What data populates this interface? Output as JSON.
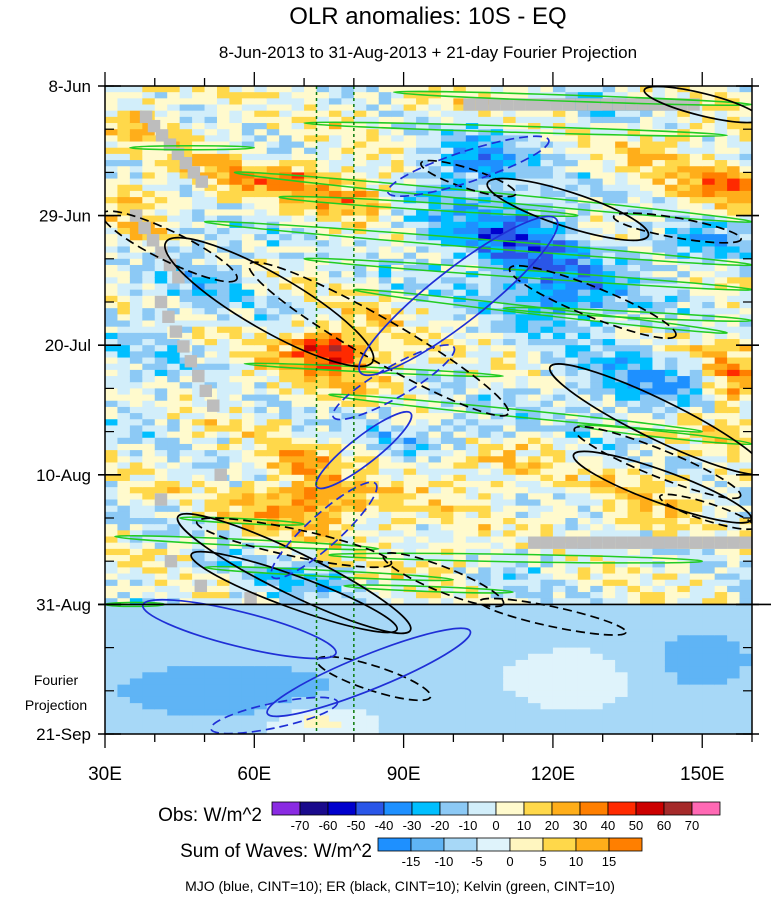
{
  "chart_data": {
    "type": "heatmap",
    "title": "OLR anomalies: 10S - EQ",
    "subtitle": "8-Jun-2013 to 31-Aug-2013 + 21-day Fourier Projection",
    "x_axis": {
      "range": [
        30,
        160
      ],
      "ticks": [
        {
          "value": 30,
          "label": "30E"
        },
        {
          "value": 60,
          "label": "60E"
        },
        {
          "value": 90,
          "label": "90E"
        },
        {
          "value": 120,
          "label": "120E"
        },
        {
          "value": 150,
          "label": "150E"
        }
      ]
    },
    "y_axis": {
      "range_days": [
        0,
        105
      ],
      "ticks": [
        {
          "day": 0,
          "label": "8-Jun"
        },
        {
          "day": 21,
          "label": "29-Jun"
        },
        {
          "day": 42,
          "label": "20-Jul"
        },
        {
          "day": 63,
          "label": "10-Aug"
        },
        {
          "day": 84,
          "label": "31-Aug"
        },
        {
          "day": 105,
          "label": "21-Sep"
        }
      ],
      "observation_end_day": 84,
      "projection_label_line1": "Fourier",
      "projection_label_line2": "Projection"
    },
    "reference_longitudes": [
      72.5,
      80
    ],
    "obs_colorbar": {
      "label": "Obs: W/m^2",
      "levels": [
        "-70",
        "-60",
        "-50",
        "-40",
        "-30",
        "-20",
        "-10",
        "0",
        "10",
        "20",
        "30",
        "40",
        "50",
        "60",
        "70"
      ],
      "colors": [
        "#8a2be2",
        "#1a0a8c",
        "#0000cd",
        "#2a56e8",
        "#1e90ff",
        "#00bfff",
        "#8cc9f5",
        "#d2eefa",
        "#fffacd",
        "#ffd84a",
        "#ffae1a",
        "#ff7f00",
        "#ff2a00",
        "#cc0000",
        "#a52a2a",
        "#ff69b4"
      ]
    },
    "waves_colorbar": {
      "label": "Sum of Waves: W/m^2",
      "levels": [
        "-15",
        "-10",
        "-5",
        "0",
        "5",
        "10",
        "15"
      ],
      "colors": [
        "#1e90ff",
        "#5fb4f5",
        "#a7d8f7",
        "#dff3fb",
        "#fff6c0",
        "#ffd84a",
        "#ffae1a",
        "#ff7f00"
      ]
    },
    "contour_note": "MJO (blue, CINT=10); ER (black, CINT=10); Kelvin (green, CINT=10)",
    "mjo_contours": [
      {
        "lon": 103,
        "day": 13,
        "rx": 17,
        "ry": 2.5,
        "rot": -18,
        "dashed": true
      },
      {
        "lon": 101,
        "day": 34,
        "rx": 25,
        "ry": 4.3,
        "rot": -38,
        "dashed": false
      },
      {
        "lon": 88,
        "day": 48,
        "rx": 14,
        "ry": 2.5,
        "rot": -30,
        "dashed": true
      },
      {
        "lon": 82,
        "day": 59,
        "rx": 12,
        "ry": 2.2,
        "rot": -38,
        "dashed": false
      },
      {
        "lon": 74,
        "day": 72,
        "rx": 14,
        "ry": 2.6,
        "rot": -42,
        "dashed": true
      },
      {
        "lon": 57,
        "day": 88,
        "rx": 20,
        "ry": 2.8,
        "rot": 14,
        "dashed": false
      },
      {
        "lon": 83,
        "day": 95,
        "rx": 22,
        "ry": 2.8,
        "rot": -22,
        "dashed": false
      },
      {
        "lon": 64,
        "day": 102,
        "rx": 13,
        "ry": 2,
        "rot": -12,
        "dashed": true
      }
    ],
    "er_contours": [
      {
        "lon": 150,
        "day": 3,
        "rx": 12,
        "ry": 1.8,
        "rot": 14,
        "dashed": false
      },
      {
        "lon": 103,
        "day": 15,
        "rx": 10,
        "ry": 1.6,
        "rot": 18,
        "dashed": true
      },
      {
        "lon": 123,
        "day": 20,
        "rx": 17,
        "ry": 2.8,
        "rot": 18,
        "dashed": false
      },
      {
        "lon": 145,
        "day": 23,
        "rx": 13,
        "ry": 1.6,
        "rot": 10,
        "dashed": true
      },
      {
        "lon": 43,
        "day": 26,
        "rx": 15,
        "ry": 2.4,
        "rot": 26,
        "dashed": true
      },
      {
        "lon": 63,
        "day": 35,
        "rx": 24,
        "ry": 4.5,
        "rot": 30,
        "dashed": false
      },
      {
        "lon": 85,
        "day": 41,
        "rx": 30,
        "ry": 3.4,
        "rot": 30,
        "dashed": true
      },
      {
        "lon": 128,
        "day": 35,
        "rx": 18,
        "ry": 2.4,
        "rot": 22,
        "dashed": true
      },
      {
        "lon": 141,
        "day": 54,
        "rx": 24,
        "ry": 3.2,
        "rot": 26,
        "dashed": false
      },
      {
        "lon": 141,
        "day": 61,
        "rx": 18,
        "ry": 2.2,
        "rot": 22,
        "dashed": true
      },
      {
        "lon": 142,
        "day": 65,
        "rx": 19,
        "ry": 2.6,
        "rot": 20,
        "dashed": false
      },
      {
        "lon": 151,
        "day": 69,
        "rx": 10,
        "ry": 1.4,
        "rot": 18,
        "dashed": true
      },
      {
        "lon": 68,
        "day": 74,
        "rx": 20,
        "ry": 2.2,
        "rot": 12,
        "dashed": true
      },
      {
        "lon": 68,
        "day": 79,
        "rx": 26,
        "ry": 3.4,
        "rot": 26,
        "dashed": false
      },
      {
        "lon": 68,
        "day": 82,
        "rx": 22,
        "ry": 2.6,
        "rot": 20,
        "dashed": false
      },
      {
        "lon": 98,
        "day": 80,
        "rx": 13,
        "ry": 2,
        "rot": 22,
        "dashed": true
      },
      {
        "lon": 120,
        "day": 86,
        "rx": 15,
        "ry": 1.6,
        "rot": 12,
        "dashed": true
      },
      {
        "lon": 84,
        "day": 96,
        "rx": 12,
        "ry": 2,
        "rot": 18,
        "dashed": true
      }
    ],
    "kelvin_contours": [
      {
        "lon1": 88,
        "day1": 1,
        "lon2": 160,
        "day2": 3,
        "half": 0.5
      },
      {
        "lon1": 70,
        "day1": 6,
        "lon2": 155,
        "day2": 8,
        "half": 0.5
      },
      {
        "lon1": 35,
        "day1": 10,
        "lon2": 60,
        "day2": 10,
        "half": 0.3
      },
      {
        "lon1": 56,
        "day1": 14,
        "lon2": 160,
        "day2": 22,
        "half": 0.7
      },
      {
        "lon1": 65,
        "day1": 18,
        "lon2": 125,
        "day2": 21,
        "half": 0.6
      },
      {
        "lon1": 50,
        "day1": 22,
        "lon2": 160,
        "day2": 29,
        "half": 0.7
      },
      {
        "lon1": 70,
        "day1": 28,
        "lon2": 160,
        "day2": 33,
        "half": 0.6
      },
      {
        "lon1": 80,
        "day1": 33,
        "lon2": 155,
        "day2": 40,
        "half": 0.6
      },
      {
        "lon1": 110,
        "day1": 36,
        "lon2": 160,
        "day2": 38,
        "half": 0.5
      },
      {
        "lon1": 58,
        "day1": 45,
        "lon2": 110,
        "day2": 47,
        "half": 0.4
      },
      {
        "lon1": 75,
        "day1": 50,
        "lon2": 150,
        "day2": 56,
        "half": 0.6
      },
      {
        "lon1": 125,
        "day1": 55,
        "lon2": 160,
        "day2": 58,
        "half": 0.5
      },
      {
        "lon1": 45,
        "day1": 70,
        "lon2": 70,
        "day2": 71,
        "half": 0.4
      },
      {
        "lon1": 32,
        "day1": 73,
        "lon2": 85,
        "day2": 75,
        "half": 0.5
      },
      {
        "lon1": 75,
        "day1": 76,
        "lon2": 150,
        "day2": 77,
        "half": 0.6
      },
      {
        "lon1": 50,
        "day1": 78,
        "lon2": 100,
        "day2": 80,
        "half": 0.5
      },
      {
        "lon1": 78,
        "day1": 81,
        "lon2": 112,
        "day2": 82,
        "half": 0.4
      },
      {
        "lon1": 30,
        "day1": 84,
        "lon2": 42,
        "day2": 84,
        "half": 0.3
      }
    ]
  }
}
